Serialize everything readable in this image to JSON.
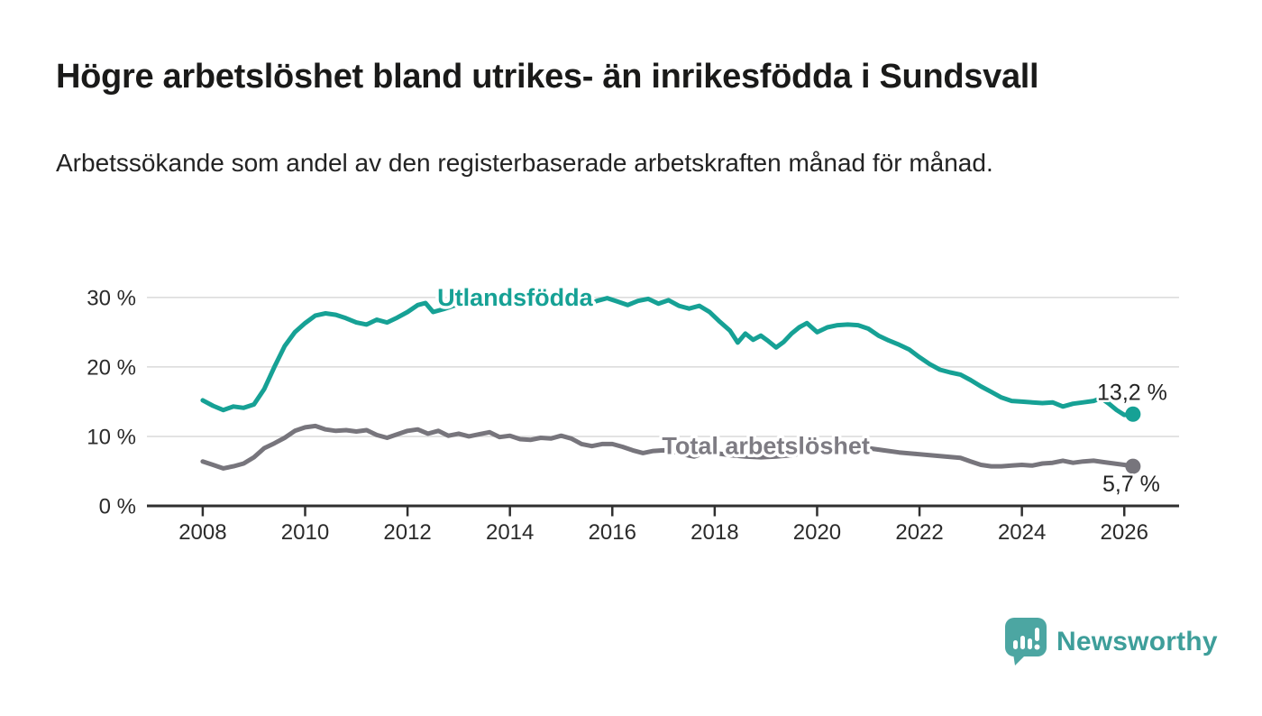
{
  "header": {
    "title": "Högre arbetslöshet bland utrikes- än inrikesfödda i Sundsvall",
    "subtitle": "Arbetssökande som andel av den registerbaserade arbetskraften månad för månad."
  },
  "chart_data": {
    "type": "line",
    "title": "Högre arbetslöshet bland utrikes- än inrikesfödda i Sundsvall",
    "xlabel": "",
    "ylabel": "",
    "grid": "horizontal-only",
    "legend_position": "inline-series-labels",
    "x_range": [
      2006.91,
      2027.07
    ],
    "y_range": [
      0,
      34
    ],
    "x_axis": {
      "ticks": [
        {
          "v": 2008,
          "label": "2008"
        },
        {
          "v": 2010,
          "label": "2010"
        },
        {
          "v": 2012,
          "label": "2012"
        },
        {
          "v": 2014,
          "label": "2014"
        },
        {
          "v": 2016,
          "label": "2016"
        },
        {
          "v": 2018,
          "label": "2018"
        },
        {
          "v": 2020,
          "label": "2020"
        },
        {
          "v": 2022,
          "label": "2022"
        },
        {
          "v": 2024,
          "label": "2024"
        },
        {
          "v": 2026,
          "label": "2026"
        }
      ]
    },
    "y_axis": {
      "ticks": [
        {
          "v": 0,
          "label": "0 %"
        },
        {
          "v": 10,
          "label": "10 %"
        },
        {
          "v": 20,
          "label": "20 %"
        },
        {
          "v": 30,
          "label": "30 %"
        }
      ]
    },
    "colors": {
      "axis": "#2F2F2F",
      "gridline": "#DADADA",
      "tick_text": "#2B2B2B",
      "end_label_text": "#242424"
    },
    "series": [
      {
        "name": "Utlandsfödda",
        "color": "#16A195",
        "label_color": "#16A195",
        "label_anchor": {
          "x": 2014.1,
          "y": 30.0
        },
        "end_value_label": "13,2 %",
        "end_label_offset": {
          "dx": 38,
          "dy": -16
        },
        "x": [
          2008.0,
          2008.2,
          2008.4,
          2008.6,
          2008.8,
          2009.0,
          2009.2,
          2009.4,
          2009.6,
          2009.8,
          2010.0,
          2010.2,
          2010.4,
          2010.6,
          2010.8,
          2011.0,
          2011.2,
          2011.4,
          2011.6,
          2011.8,
          2012.0,
          2012.2,
          2012.35,
          2012.5,
          2012.7,
          2012.9,
          2013.1,
          2013.3,
          2013.5,
          2013.7,
          2013.9,
          2014.1,
          2014.3,
          2014.5,
          2014.7,
          2014.9,
          2015.1,
          2015.3,
          2015.5,
          2015.7,
          2015.9,
          2016.1,
          2016.3,
          2016.5,
          2016.7,
          2016.9,
          2017.1,
          2017.3,
          2017.5,
          2017.7,
          2017.9,
          2018.1,
          2018.3,
          2018.45,
          2018.6,
          2018.75,
          2018.9,
          2019.05,
          2019.2,
          2019.35,
          2019.5,
          2019.65,
          2019.8,
          2020.0,
          2020.2,
          2020.4,
          2020.6,
          2020.8,
          2021.0,
          2021.2,
          2021.4,
          2021.6,
          2021.8,
          2022.0,
          2022.2,
          2022.4,
          2022.6,
          2022.8,
          2023.0,
          2023.2,
          2023.4,
          2023.6,
          2023.8,
          2024.0,
          2024.2,
          2024.4,
          2024.6,
          2024.8,
          2025.0,
          2025.2,
          2025.4,
          2025.55,
          2025.7,
          2025.85,
          2026.0,
          2026.17
        ],
        "y": [
          15.2,
          14.4,
          13.8,
          14.3,
          14.1,
          14.6,
          16.8,
          20.0,
          23.0,
          25.0,
          26.3,
          27.4,
          27.7,
          27.5,
          27.0,
          26.4,
          26.1,
          26.8,
          26.4,
          27.1,
          27.9,
          28.9,
          29.2,
          27.9,
          28.3,
          28.8,
          29.1,
          29.7,
          29.4,
          28.9,
          29.4,
          29.1,
          29.6,
          29.1,
          29.5,
          29.2,
          29.6,
          29.2,
          28.9,
          29.5,
          29.9,
          29.4,
          28.9,
          29.5,
          29.8,
          29.1,
          29.6,
          28.8,
          28.4,
          28.8,
          27.9,
          26.5,
          25.2,
          23.5,
          24.8,
          23.9,
          24.5,
          23.7,
          22.8,
          23.6,
          24.8,
          25.7,
          26.3,
          25.0,
          25.7,
          26.0,
          26.1,
          26.0,
          25.5,
          24.5,
          23.8,
          23.2,
          22.5,
          21.4,
          20.4,
          19.6,
          19.2,
          18.9,
          18.1,
          17.2,
          16.4,
          15.6,
          15.1,
          15.0,
          14.9,
          14.8,
          14.9,
          14.3,
          14.7,
          14.9,
          15.1,
          15.5,
          14.7,
          13.8,
          13.1,
          13.2
        ]
      },
      {
        "name": "Total arbetslöshet",
        "color": "#77757C",
        "label_color": "#7E7C83",
        "label_anchor": {
          "x": 2019.0,
          "y": 8.6
        },
        "end_value_label": "5,7 %",
        "end_label_offset": {
          "dx": 30,
          "dy": 28
        },
        "x": [
          2008.0,
          2008.2,
          2008.4,
          2008.6,
          2008.8,
          2009.0,
          2009.2,
          2009.4,
          2009.6,
          2009.8,
          2010.0,
          2010.2,
          2010.4,
          2010.6,
          2010.8,
          2011.0,
          2011.2,
          2011.4,
          2011.6,
          2011.8,
          2012.0,
          2012.2,
          2012.4,
          2012.6,
          2012.8,
          2013.0,
          2013.2,
          2013.4,
          2013.6,
          2013.8,
          2014.0,
          2014.2,
          2014.4,
          2014.6,
          2014.8,
          2015.0,
          2015.2,
          2015.4,
          2015.6,
          2015.8,
          2016.0,
          2016.2,
          2016.4,
          2016.6,
          2016.8,
          2017.0,
          2017.2,
          2017.4,
          2017.6,
          2017.8,
          2018.0,
          2018.3,
          2018.6,
          2018.9,
          2019.2,
          2019.5,
          2019.8,
          2020.1,
          2020.4,
          2020.7,
          2021.0,
          2021.3,
          2021.6,
          2021.9,
          2022.2,
          2022.5,
          2022.8,
          2023.0,
          2023.2,
          2023.4,
          2023.6,
          2023.8,
          2024.0,
          2024.2,
          2024.4,
          2024.6,
          2024.8,
          2025.0,
          2025.2,
          2025.4,
          2025.6,
          2025.8,
          2026.0,
          2026.17
        ],
        "y": [
          6.4,
          5.9,
          5.4,
          5.7,
          6.1,
          7.0,
          8.3,
          9.0,
          9.8,
          10.8,
          11.3,
          11.5,
          11.0,
          10.8,
          10.9,
          10.7,
          10.9,
          10.2,
          9.8,
          10.3,
          10.8,
          11.0,
          10.4,
          10.8,
          10.1,
          10.4,
          10.0,
          10.3,
          10.6,
          9.9,
          10.1,
          9.6,
          9.5,
          9.8,
          9.7,
          10.1,
          9.7,
          8.9,
          8.6,
          8.9,
          8.9,
          8.5,
          8.0,
          7.6,
          7.9,
          8.0,
          7.8,
          7.4,
          7.1,
          7.6,
          7.6,
          7.3,
          7.1,
          7.0,
          7.1,
          7.3,
          7.7,
          8.2,
          8.8,
          8.6,
          8.3,
          8.0,
          7.7,
          7.5,
          7.3,
          7.1,
          6.9,
          6.4,
          5.9,
          5.7,
          5.7,
          5.8,
          5.9,
          5.8,
          6.1,
          6.2,
          6.5,
          6.2,
          6.4,
          6.5,
          6.3,
          6.1,
          5.9,
          5.7
        ]
      }
    ]
  },
  "footer": {
    "brand": "Newsworthy",
    "logo_color": "#4CA6A2"
  }
}
